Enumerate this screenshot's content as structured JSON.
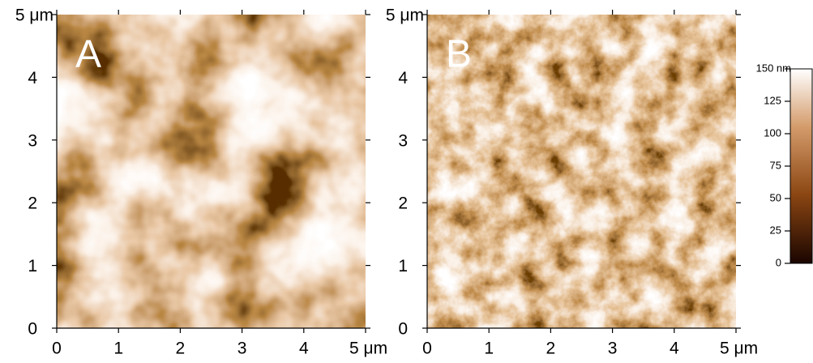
{
  "panels": [
    {
      "label": "A",
      "xticks": [
        0,
        1,
        2,
        3,
        4,
        {
          "value": 5,
          "label": "5 μm"
        }
      ],
      "yticks": [
        0,
        1,
        2,
        3,
        4,
        {
          "value": 5,
          "label": "5 μm"
        }
      ]
    },
    {
      "label": "B",
      "xticks": [
        0,
        1,
        2,
        3,
        4,
        {
          "value": 5,
          "label": "5 μm"
        }
      ],
      "yticks": [
        0,
        1,
        2,
        3,
        4,
        {
          "value": 5,
          "label": "5 μm"
        }
      ]
    }
  ],
  "colorbar": {
    "ticks": [
      0,
      25,
      50,
      75,
      100,
      125,
      {
        "value": 150,
        "label": "150 nm"
      }
    ]
  }
}
